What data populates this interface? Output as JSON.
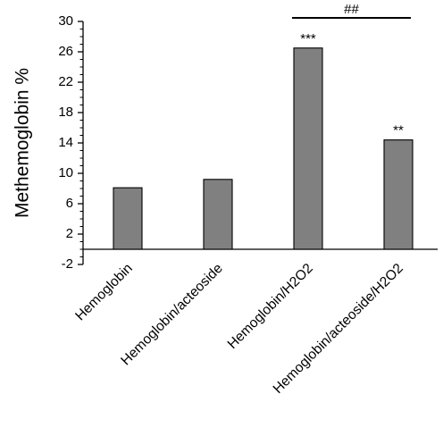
{
  "chart_data": {
    "type": "bar",
    "title": "",
    "xlabel": "",
    "ylabel": "Methemoglobin %",
    "ylim": [
      -2,
      30
    ],
    "yticks": [
      -2,
      2,
      6,
      10,
      14,
      18,
      22,
      26,
      30
    ],
    "grid": false,
    "categories": [
      "Hemoglobin",
      "Hemoglobin/acteoside",
      "Hemoglobin/H2O2",
      "Hemoglobin/acteoside/H2O2"
    ],
    "values": [
      8.1,
      9.2,
      26.5,
      14.4
    ],
    "bar_color": "#808080",
    "bar_annotations": [
      "",
      "",
      "***",
      "**"
    ],
    "bracket": {
      "from_category": 2,
      "to_category": 3,
      "label": "##"
    }
  }
}
